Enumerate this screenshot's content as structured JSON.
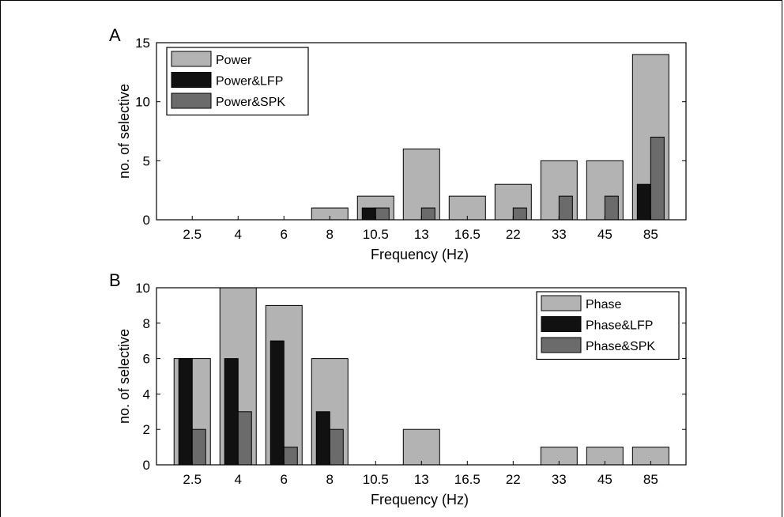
{
  "chart_data": [
    {
      "panel_label": "A",
      "type": "bar",
      "categories": [
        "2.5",
        "4",
        "6",
        "8",
        "10.5",
        "13",
        "16.5",
        "22",
        "33",
        "45",
        "85"
      ],
      "series": [
        {
          "name": "Power",
          "color": "#b3b3b3",
          "values": [
            0,
            0,
            0,
            1,
            2,
            6,
            2,
            3,
            5,
            5,
            14
          ]
        },
        {
          "name": "Power&LFP",
          "color": "#111111",
          "values": [
            0,
            0,
            0,
            0,
            1,
            0,
            0,
            0,
            0,
            0,
            3
          ]
        },
        {
          "name": "Power&SPK",
          "color": "#6b6b6b",
          "values": [
            0,
            0,
            0,
            0,
            1,
            1,
            0,
            1,
            2,
            2,
            7
          ]
        }
      ],
      "xlabel": "Frequency (Hz)",
      "ylabel": "no. of selective",
      "ylim": [
        0,
        15
      ],
      "yticks": [
        "0",
        "5",
        "10",
        "15"
      ],
      "legend_position": "top-left",
      "grid": false
    },
    {
      "panel_label": "B",
      "type": "bar",
      "categories": [
        "2.5",
        "4",
        "6",
        "8",
        "10.5",
        "13",
        "16.5",
        "22",
        "33",
        "45",
        "85"
      ],
      "series": [
        {
          "name": "Phase",
          "color": "#b3b3b3",
          "values": [
            6,
            10,
            9,
            6,
            0,
            2,
            0,
            0,
            1,
            1,
            1
          ]
        },
        {
          "name": "Phase&LFP",
          "color": "#111111",
          "values": [
            6,
            6,
            7,
            3,
            0,
            0,
            0,
            0,
            0,
            0,
            0
          ]
        },
        {
          "name": "Phase&SPK",
          "color": "#6b6b6b",
          "values": [
            2,
            3,
            1,
            2,
            0,
            0,
            0,
            0,
            0,
            0,
            0
          ]
        }
      ],
      "xlabel": "Frequency (Hz)",
      "ylabel": "no. of selective",
      "ylim": [
        0,
        10
      ],
      "yticks": [
        "0",
        "2",
        "4",
        "6",
        "8",
        "10"
      ],
      "legend_position": "top-right",
      "grid": false
    }
  ]
}
